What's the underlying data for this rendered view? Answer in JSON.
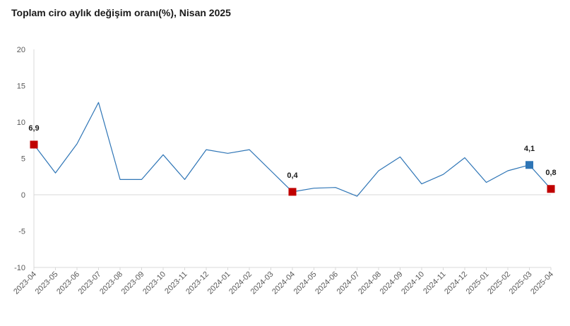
{
  "chart_data": {
    "type": "line",
    "title": "Toplam ciro aylık değişim oranı(%), Nisan 2025",
    "xlabel": "",
    "ylabel": "",
    "ylim": [
      -10,
      20
    ],
    "yticks": [
      "20",
      "15",
      "10",
      "5",
      "0",
      "-5",
      "-10"
    ],
    "ytick_values": [
      20,
      15,
      10,
      5,
      0,
      -5,
      -10
    ],
    "grid": false,
    "categories": [
      "2023-04",
      "2023-05",
      "2023-06",
      "2023-07",
      "2023-08",
      "2023-09",
      "2023-10",
      "2023-11",
      "2023-12",
      "2024-01",
      "2024-02",
      "2024-03",
      "2024-04",
      "2024-05",
      "2024-06",
      "2024-07",
      "2024-08",
      "2024-09",
      "2024-10",
      "2024-11",
      "2024-12",
      "2025-01",
      "2025-02",
      "2025-03",
      "2025-04"
    ],
    "series": [
      {
        "values": [
          6.9,
          3.0,
          7.0,
          12.7,
          2.1,
          2.1,
          5.5,
          2.1,
          6.2,
          5.7,
          6.2,
          3.3,
          0.4,
          0.9,
          1.0,
          -0.2,
          3.3,
          5.2,
          1.5,
          2.8,
          5.1,
          1.7,
          3.3,
          4.1,
          0.8
        ],
        "color": "#2e75b6"
      }
    ],
    "highlights": [
      {
        "index": 0,
        "label": "6,9",
        "color": "#c00000"
      },
      {
        "index": 12,
        "label": "0,4",
        "color": "#c00000"
      },
      {
        "index": 23,
        "label": "4,1",
        "color": "#2e75b6"
      },
      {
        "index": 24,
        "label": "0,8",
        "color": "#c00000"
      }
    ]
  }
}
